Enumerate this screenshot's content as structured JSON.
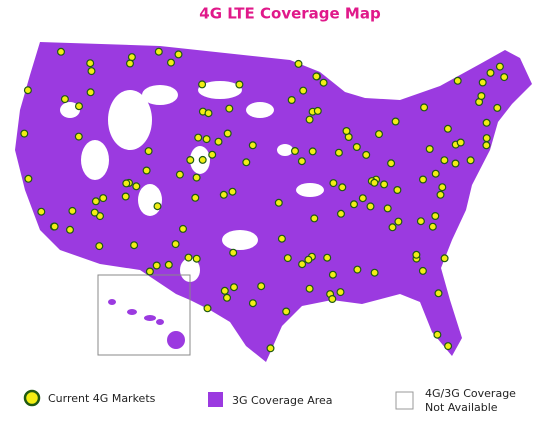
{
  "header": {
    "title": "4G LTE Coverage Map"
  },
  "legend": {
    "items": [
      {
        "label": "Current 4G Markets"
      },
      {
        "label": "3G Coverage Area"
      },
      {
        "lines": [
          "4G/3G Coverage",
          "Not Available"
        ]
      }
    ]
  }
}
